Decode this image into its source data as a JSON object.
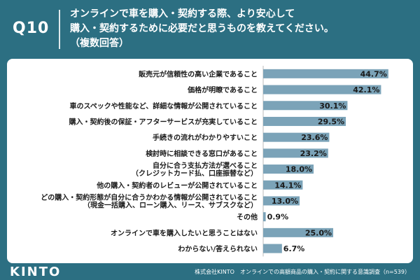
{
  "header": {
    "q_label": "Q10",
    "question_lines": [
      "オンラインで車を購入・契約する際、より安心して",
      "購入・契約するために必要だと思うものを教えてください。",
      "（複数回答）"
    ]
  },
  "footer": {
    "logo": "KINTO",
    "source": "株式会社KINTO　オンラインでの高額商品の購入・契約に関する意識調査（n=539）"
  },
  "colors": {
    "background": "#2c6f82",
    "bar": "#7ba3b8",
    "panel": "#ffffff"
  },
  "chart_data": {
    "type": "bar",
    "orientation": "horizontal",
    "title": "",
    "xlabel": "",
    "ylabel": "",
    "xlim": [
      0,
      50
    ],
    "unit": "%",
    "categories": [
      [
        "販売元が信頼性の高い企業であること"
      ],
      [
        "価格が明瞭であること"
      ],
      [
        "車のスペックや性能など、詳細な情報が公開されていること"
      ],
      [
        "購入・契約後の保証・アフターサービスが充実していること"
      ],
      [
        "手続きの流れがわかりやすいこと"
      ],
      [
        "検討時に相談できる窓口があること"
      ],
      [
        "自分に合う支払方法が選べること",
        "（クレジットカード払、口座振替など）"
      ],
      [
        "他の購入・契約者のレビューが公開されていること"
      ],
      [
        "どの購入・契約形態が自分に合うかわかる情報が公開されていること",
        "（現金一括購入、ローン購入、リース、サブスクなど）"
      ],
      [
        "その他"
      ],
      [
        "オンラインで車を購入したいと思うことはない"
      ],
      [
        "わからない/答えられない"
      ]
    ],
    "values": [
      44.7,
      42.1,
      30.1,
      29.5,
      23.6,
      23.2,
      18.0,
      14.1,
      13.0,
      0.9,
      25.0,
      6.7
    ],
    "value_labels": [
      "44.7%",
      "42.1%",
      "30.1%",
      "29.5%",
      "23.6%",
      "23.2%",
      "18.0%",
      "14.1%",
      "13.0%",
      "0.9%",
      "25.0%",
      "6.7%"
    ]
  }
}
